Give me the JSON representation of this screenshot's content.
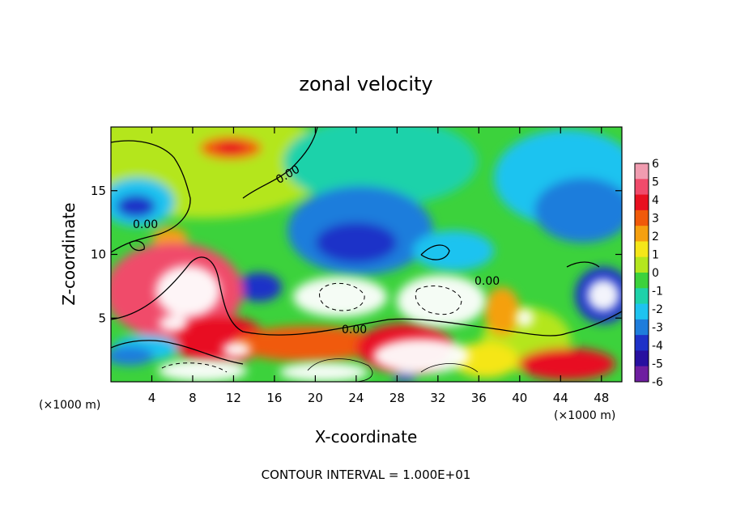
{
  "chart_data": {
    "type": "heatmap",
    "title": "zonal velocity",
    "xlabel": "X-coordinate",
    "ylabel": "Z-coordinate",
    "x_unit_label": "(×1000 m)",
    "y_unit_label": "(×1000 m)",
    "xlim": [
      0,
      50
    ],
    "ylim": [
      0,
      20
    ],
    "x_ticks": [
      4,
      8,
      12,
      16,
      20,
      24,
      28,
      32,
      36,
      40,
      44,
      48
    ],
    "y_ticks": [
      5,
      10,
      15
    ],
    "colorbar": {
      "min": -6,
      "max": 6,
      "ticks": [
        6,
        5,
        4,
        3,
        2,
        1,
        0,
        -1,
        -2,
        -3,
        -4,
        -5,
        -6
      ],
      "colors": [
        "#f09cb0",
        "#f04b6b",
        "#e81020",
        "#f05a0a",
        "#f5a010",
        "#f5e619",
        "#b4e61e",
        "#3cd23c",
        "#1ed2aa",
        "#1ec3f0",
        "#1e7ddc",
        "#1e32c8",
        "#2810a0",
        "#6e1ea0"
      ]
    },
    "contour_labels": [
      "0.00",
      "0.00",
      "0.00",
      "0.00"
    ],
    "footer": "CONTOUR INTERVAL = 1.000E+01"
  }
}
